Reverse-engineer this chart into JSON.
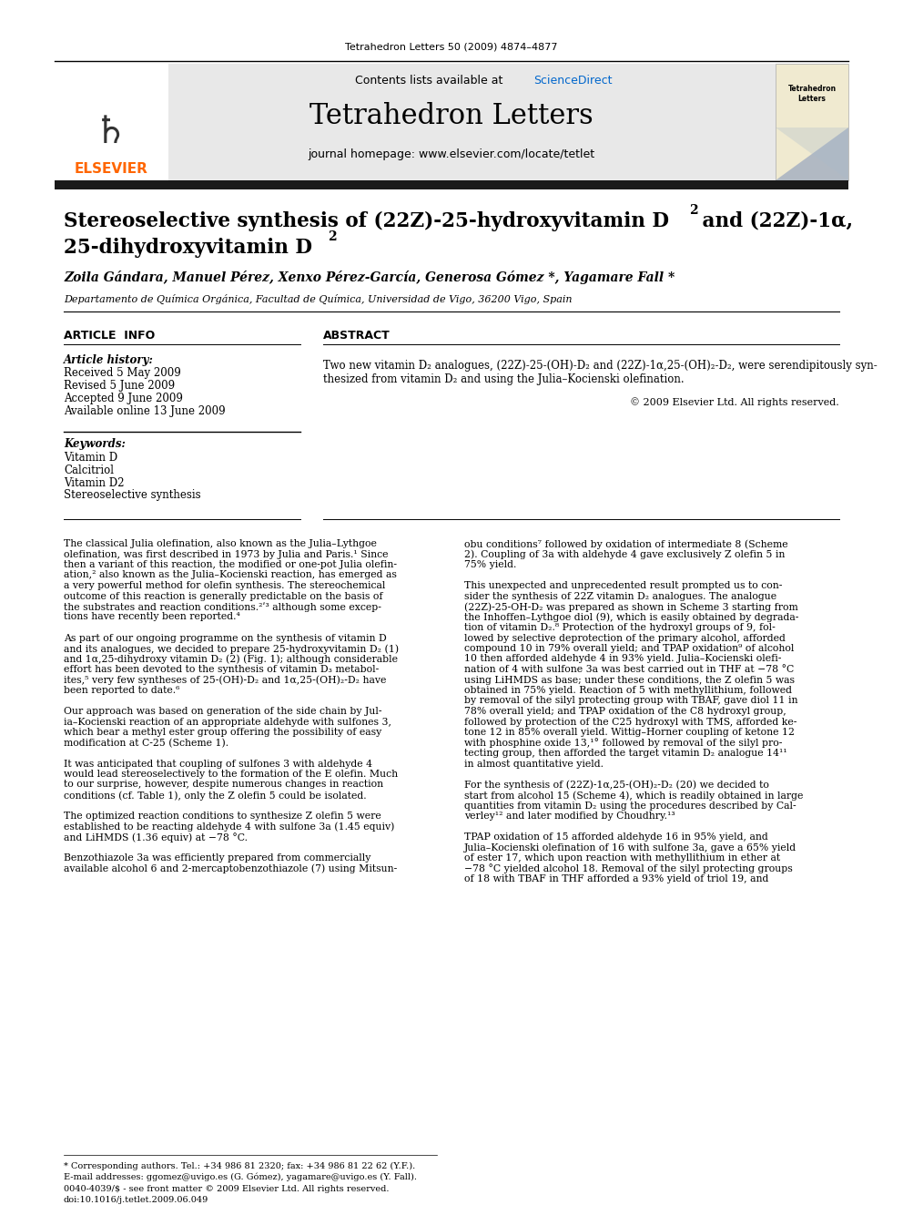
{
  "journal_header_text": "Tetrahedron Letters 50 (2009) 4874–4877",
  "contents_text": "Contents lists available at ScienceDirect",
  "sciencedirect_color": "#0066cc",
  "journal_name": "Tetrahedron Letters",
  "journal_homepage": "journal homepage: www.elsevier.com/locate/tetlet",
  "elsevier_color": "#FF6600",
  "elsevier_text": "ELSEVIER",
  "authors": "Zoila Gándara, Manuel Pérez, Xenxo Pérez-García, Generosa Gómez *, Yagamare Fall *",
  "affiliation": "Departamento de Química Orgánica, Facultad de Química, Universidad de Vigo, 36200 Vigo, Spain",
  "article_info_label": "ARTICLE  INFO",
  "abstract_label": "ABSTRACT",
  "article_history_label": "Article history:",
  "received": "Received 5 May 2009",
  "revised": "Revised 5 June 2009",
  "accepted": "Accepted 9 June 2009",
  "available": "Available online 13 June 2009",
  "keywords_label": "Keywords:",
  "keywords": [
    "Vitamin D",
    "Calcitriol",
    "Vitamin D2",
    "Stereoselective synthesis"
  ],
  "copyright": "© 2009 Elsevier Ltd. All rights reserved.",
  "footnote1": "* Corresponding authors. Tel.: +34 986 81 2320; fax: +34 986 81 22 62 (Y.F.).",
  "footnote2": "E-mail addresses: ggomez@uvigo.es (G. Gómez), yagamare@uvigo.es (Y. Fall).",
  "issn_text": "0040-4039/$ - see front matter © 2009 Elsevier Ltd. All rights reserved.",
  "doi_text": "doi:10.1016/j.tetlet.2009.06.049",
  "bg_color": "#ffffff",
  "header_bg": "#e8e8e8",
  "thick_bar_color": "#1a1a1a",
  "body_col1_lines": [
    "The classical Julia olefination, also known as the Julia–Lythgoe",
    "olefination, was first described in 1973 by Julia and Paris.¹ Since",
    "then a variant of this reaction, the modified or one-pot Julia olefin-",
    "ation,² also known as the Julia–Kocienski reaction, has emerged as",
    "a very powerful method for olefin synthesis. The stereochemical",
    "outcome of this reaction is generally predictable on the basis of",
    "the substrates and reaction conditions.²ʹ³ although some excep-",
    "tions have recently been reported.⁴",
    "",
    "As part of our ongoing programme on the synthesis of vitamin D",
    "and its analogues, we decided to prepare 25-hydroxyvitamin D₂ (1)",
    "and 1α,25-dihydroxy vitamin D₂ (2) (Fig. 1); although considerable",
    "effort has been devoted to the synthesis of vitamin D₃ metabol-",
    "ites,⁵ very few syntheses of 25-(OH)-D₂ and 1α,25-(OH)₂-D₂ have",
    "been reported to date.⁶",
    "",
    "Our approach was based on generation of the side chain by Jul-",
    "ia–Kocienski reaction of an appropriate aldehyde with sulfones 3,",
    "which bear a methyl ester group offering the possibility of easy",
    "modification at C-25 (Scheme 1).",
    "",
    "It was anticipated that coupling of sulfones 3 with aldehyde 4",
    "would lead stereoselectively to the formation of the E olefin. Much",
    "to our surprise, however, despite numerous changes in reaction",
    "conditions (cf. Table 1), only the Z olefin 5 could be isolated.",
    "",
    "The optimized reaction conditions to synthesize Z olefin 5 were",
    "established to be reacting aldehyde 4 with sulfone 3a (1.45 equiv)",
    "and LiHMDS (1.36 equiv) at −78 °C.",
    "",
    "Benzothiazole 3a was efficiently prepared from commercially",
    "available alcohol 6 and 2-mercaptobenzothiazole (7) using Mitsun-"
  ],
  "body_col2_lines": [
    "obu conditions⁷ followed by oxidation of intermediate 8 (Scheme",
    "2). Coupling of 3a with aldehyde 4 gave exclusively Z olefin 5 in",
    "75% yield.",
    "",
    "This unexpected and unprecedented result prompted us to con-",
    "sider the synthesis of 22Z vitamin D₂ analogues. The analogue",
    "(22Z)-25-OH-D₂ was prepared as shown in Scheme 3 starting from",
    "the Inhoffen–Lythgoe diol (9), which is easily obtained by degrada-",
    "tion of vitamin D₂.⁸ Protection of the hydroxyl groups of 9, fol-",
    "lowed by selective deprotection of the primary alcohol, afforded",
    "compound 10 in 79% overall yield; and TPAP oxidation⁹ of alcohol",
    "10 then afforded aldehyde 4 in 93% yield. Julia–Kocienski olefi-",
    "nation of 4 with sulfone 3a was best carried out in THF at −78 °C",
    "using LiHMDS as base; under these conditions, the Z olefin 5 was",
    "obtained in 75% yield. Reaction of 5 with methyllithium, followed",
    "by removal of the silyl protecting group with TBAF, gave diol 11 in",
    "78% overall yield; and TPAP oxidation of the C8 hydroxyl group,",
    "followed by protection of the C25 hydroxyl with TMS, afforded ke-",
    "tone 12 in 85% overall yield. Wittig–Horner coupling of ketone 12",
    "with phosphine oxide 13,¹° followed by removal of the silyl pro-",
    "tecting group, then afforded the target vitamin D₂ analogue 14¹¹",
    "in almost quantitative yield.",
    "",
    "For the synthesis of (22Z)-1α,25-(OH)₂-D₂ (20) we decided to",
    "start from alcohol 15 (Scheme 4), which is readily obtained in large",
    "quantities from vitamin D₂ using the procedures described by Cal-",
    "verley¹² and later modified by Choudhry.¹³",
    "",
    "TPAP oxidation of 15 afforded aldehyde 16 in 95% yield, and",
    "Julia–Kocienski olefination of 16 with sulfone 3a, gave a 65% yield",
    "of ester 17, which upon reaction with methyllithium in ether at",
    "−78 °C yielded alcohol 18. Removal of the silyl protecting groups",
    "of 18 with TBAF in THF afforded a 93% yield of triol 19, and"
  ]
}
